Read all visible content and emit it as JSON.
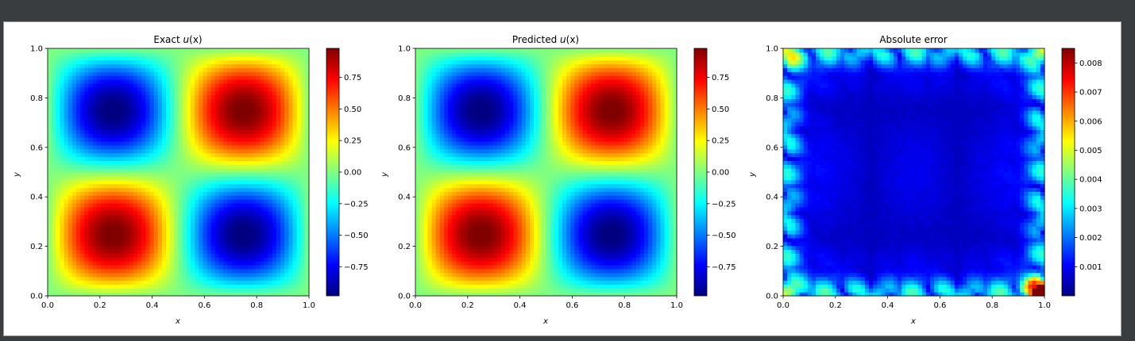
{
  "colors": {
    "window_background": "#3a3d40",
    "figure_background": "#ffffff",
    "colormap": "jet"
  },
  "chart_data": [
    {
      "type": "heatmap",
      "title_prefix": "Exact ",
      "title_var": "u",
      "title_paren": "(x)",
      "field": "exact",
      "formula": "sin(2*pi*x)*sin(2*pi*y)",
      "xlabel": "x",
      "ylabel": "y",
      "xlim": [
        0,
        1
      ],
      "ylim": [
        0,
        1
      ],
      "xticks": [
        "0.0",
        "0.2",
        "0.4",
        "0.6",
        "0.8",
        "1.0"
      ],
      "yticks": [
        "0.0",
        "0.2",
        "0.4",
        "0.6",
        "0.8",
        "1.0"
      ],
      "colorbar_range": [
        -0.98,
        0.98
      ],
      "colorbar_ticks": [
        {
          "value": 0.75,
          "label": "0.75"
        },
        {
          "value": 0.5,
          "label": "0.50"
        },
        {
          "value": 0.25,
          "label": "0.25"
        },
        {
          "value": 0.0,
          "label": "0.00"
        },
        {
          "value": -0.25,
          "label": "−0.25"
        },
        {
          "value": -0.5,
          "label": "−0.50"
        },
        {
          "value": -0.75,
          "label": "−0.75"
        }
      ]
    },
    {
      "type": "heatmap",
      "title_prefix": "Predicted ",
      "title_var": "u",
      "title_paren": "(x)",
      "field": "predicted",
      "formula": "sin(2*pi*x)*sin(2*pi*y)",
      "xlabel": "x",
      "ylabel": "y",
      "xlim": [
        0,
        1
      ],
      "ylim": [
        0,
        1
      ],
      "xticks": [
        "0.0",
        "0.2",
        "0.4",
        "0.6",
        "0.8",
        "1.0"
      ],
      "yticks": [
        "0.0",
        "0.2",
        "0.4",
        "0.6",
        "0.8",
        "1.0"
      ],
      "colorbar_range": [
        -0.98,
        0.98
      ],
      "colorbar_ticks": [
        {
          "value": 0.75,
          "label": "0.75"
        },
        {
          "value": 0.5,
          "label": "0.50"
        },
        {
          "value": 0.25,
          "label": "0.25"
        },
        {
          "value": 0.0,
          "label": "0.00"
        },
        {
          "value": -0.25,
          "label": "−0.25"
        },
        {
          "value": -0.5,
          "label": "−0.50"
        },
        {
          "value": -0.75,
          "label": "−0.75"
        }
      ]
    },
    {
      "type": "heatmap",
      "title_prefix": "Absolute error",
      "title_var": "",
      "title_paren": "",
      "field": "error",
      "xlabel": "x",
      "ylabel": "y",
      "xlim": [
        0,
        1
      ],
      "ylim": [
        0,
        1
      ],
      "xticks": [
        "0.0",
        "0.2",
        "0.4",
        "0.6",
        "0.8",
        "1.0"
      ],
      "yticks": [
        "0.0",
        "0.2",
        "0.4",
        "0.6",
        "0.8",
        "1.0"
      ],
      "colorbar_range": [
        0.0,
        0.0085
      ],
      "colorbar_ticks": [
        {
          "value": 0.008,
          "label": "0.008"
        },
        {
          "value": 0.007,
          "label": "0.007"
        },
        {
          "value": 0.006,
          "label": "0.006"
        },
        {
          "value": 0.005,
          "label": "0.005"
        },
        {
          "value": 0.004,
          "label": "0.004"
        },
        {
          "value": 0.003,
          "label": "0.003"
        },
        {
          "value": 0.002,
          "label": "0.002"
        },
        {
          "value": 0.001,
          "label": "0.001"
        }
      ]
    }
  ]
}
